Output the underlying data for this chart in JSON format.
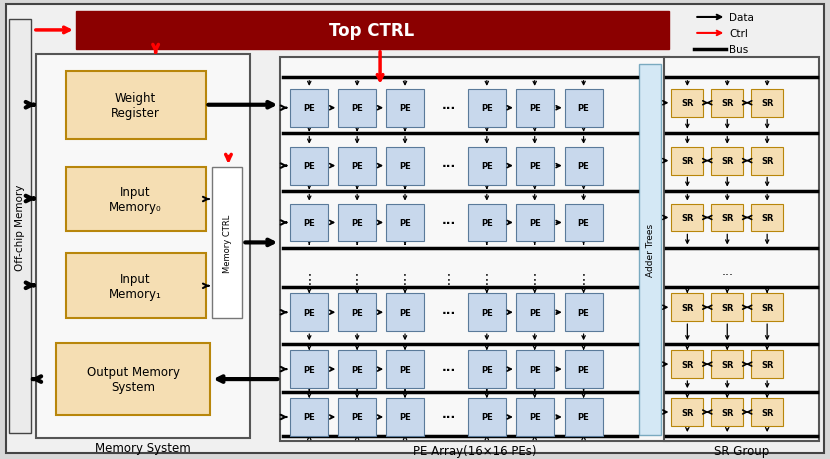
{
  "title": "Top CTRL",
  "memory_system_label": "Memory System",
  "pe_array_label": "PE Array(16×16 PEs)",
  "sr_group_label": "SR Group",
  "offchip_label": "Off-chip Memory",
  "memory_ctrl_label": "Memory CTRL",
  "adder_trees_label": "Adder Trees",
  "weight_label": "Weight\nRegister",
  "input0_label": "Input\nMemory₀",
  "input1_label": "Input\nMemory₁",
  "output_label": "Output Memory\nSystem",
  "pe_label": "PE",
  "sr_label": "SR",
  "yellow_fc": "#F5DEB3",
  "yellow_ec": "#B8860B",
  "blue_fc": "#C8D8EC",
  "blue_ec": "#5A7A9A",
  "adder_fc": "#D4E8F5",
  "adder_ec": "#7AAAC0",
  "outer_fc": "#F0F0F0",
  "outer_ec": "#444444",
  "mem_sys_fc": "#F8F8F8",
  "mem_sys_ec": "#555555",
  "top_ctrl_fc": "#8B0000",
  "bg_color": "#D8D8D8"
}
